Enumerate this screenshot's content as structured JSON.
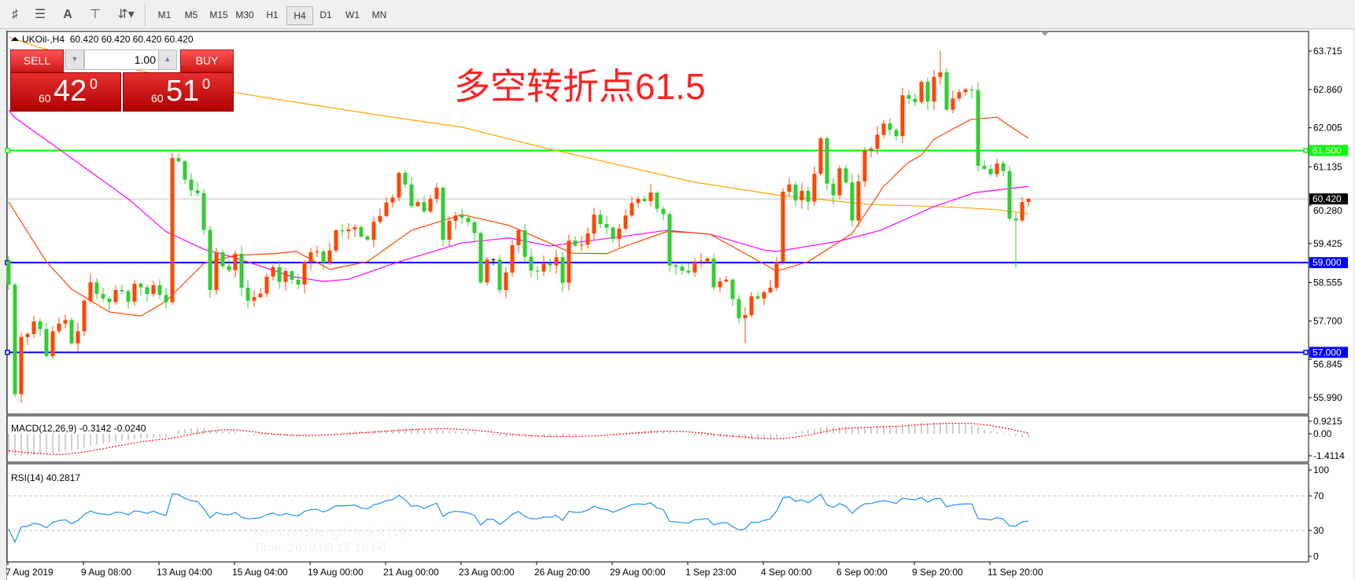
{
  "toolbar": {
    "icons": [
      "expert-tool-icon",
      "fibonacci-tool-icon",
      "text-tool-icon",
      "text-label-tool-icon",
      "arrows-tool-icon"
    ],
    "timeframes": [
      "M1",
      "M5",
      "M15",
      "M30",
      "H1",
      "H4",
      "D1",
      "W1",
      "MN"
    ],
    "active_timeframe": "H4"
  },
  "chart_header": {
    "symbol": "UKOil-,H4",
    "ohlc": "60.420 60.420 60.420 60.420"
  },
  "trade_panel": {
    "sell_label": "SELL",
    "buy_label": "BUY",
    "lot": "1.00",
    "sell_price": {
      "prefix": "60",
      "big": "42",
      "sup": "0"
    },
    "buy_price": {
      "prefix": "60",
      "big": "51",
      "sup": "0"
    }
  },
  "annotation": "多空转折点61.5",
  "tooltip": {
    "line1": "Relative Strength Index (14)",
    "line2": "Time: 2019.08.15 16:00"
  },
  "colors": {
    "bull": "#ff4500",
    "bear": "#32cd32",
    "ma_fast": "#ff4500",
    "ma_mid": "#ff00ff",
    "ma_slow": "#ffa500",
    "rsi": "#1e90ff",
    "resistance": "#00ff00",
    "support": "#0000ff",
    "annotation": "#ff2020"
  },
  "chart_data": [
    {
      "type": "candlestick",
      "title": "UKOil-,H4",
      "first_open": 59.04,
      "close": [
        58.51,
        56.07,
        57.34,
        57.41,
        57.69,
        57.52,
        56.92,
        57.47,
        57.64,
        57.72,
        57.2,
        57.47,
        58.15,
        58.56,
        58.3,
        58.2,
        58.12,
        58.39,
        58.36,
        58.13,
        58.53,
        58.45,
        58.3,
        58.5,
        58.28,
        58.12,
        61.33,
        61.26,
        60.85,
        60.61,
        60.55,
        59.73,
        58.39,
        59.23,
        58.92,
        58.83,
        59.2,
        58.44,
        58.15,
        58.23,
        58.31,
        58.69,
        58.9,
        58.57,
        58.81,
        58.62,
        58.51,
        59.02,
        59.23,
        59.25,
        59.0,
        59.27,
        59.72,
        59.7,
        59.74,
        59.79,
        59.58,
        59.51,
        59.91,
        60.04,
        60.34,
        60.45,
        61.0,
        60.74,
        60.26,
        60.35,
        60.14,
        60.42,
        60.67,
        59.51,
        59.93,
        60.05,
        60.0,
        59.9,
        59.66,
        58.56,
        59.07,
        59.07,
        58.39,
        58.78,
        59.39,
        59.72,
        59.13,
        58.82,
        58.8,
        58.98,
        58.94,
        59.12,
        58.55,
        59.49,
        59.38,
        59.4,
        59.65,
        60.07,
        59.86,
        59.78,
        59.53,
        59.76,
        60.05,
        60.33,
        60.42,
        60.37,
        60.56,
        60.2,
        60.08,
        58.94,
        58.91,
        58.82,
        58.78,
        59.01,
        59.03,
        59.09,
        58.45,
        58.58,
        58.62,
        58.19,
        57.76,
        57.83,
        58.25,
        58.2,
        58.34,
        58.44,
        59.01,
        60.58,
        60.74,
        60.39,
        60.6,
        60.36,
        60.98,
        61.77,
        60.76,
        60.5,
        61.1,
        60.79,
        59.94,
        60.81,
        61.5,
        61.54,
        61.85,
        62.1,
        61.96,
        61.82,
        62.73,
        62.65,
        62.58,
        63.03,
        62.59,
        63.14,
        63.24,
        62.41,
        62.66,
        62.8,
        62.86,
        62.85,
        61.16,
        61.09,
        60.97,
        61.21,
        61.04,
        59.98,
        59.94,
        60.35,
        60.42
      ],
      "extremes": [
        {
          "bar": 2,
          "low": 55.87
        },
        {
          "bar": 26,
          "high": 61.45
        },
        {
          "bar": 117,
          "low": 57.2
        },
        {
          "bar": 148,
          "high": 63.73
        },
        {
          "bar": 160,
          "low": 58.89
        }
      ],
      "moving_averages": [
        {
          "color": "#ffa500",
          "points": [
            [
              0,
              64.03
            ],
            [
              5,
              63.79
            ],
            [
              36,
              62.79
            ],
            [
              44,
              62.61
            ],
            [
              61.5,
              62.23
            ],
            [
              72,
              62.02
            ],
            [
              86,
              61.53
            ],
            [
              109,
              60.79
            ],
            [
              123,
              60.49
            ],
            [
              136.5,
              60.3
            ],
            [
              151,
              60.23
            ],
            [
              157,
              60.18
            ],
            [
              162,
              60.09
            ]
          ]
        },
        {
          "color": "#ff00ff",
          "points": [
            [
              0,
              62.4
            ],
            [
              1,
              62.23
            ],
            [
              8,
              61.53
            ],
            [
              19,
              60.42
            ],
            [
              25,
              59.69
            ],
            [
              31,
              59.3
            ],
            [
              36,
              59.11
            ],
            [
              45,
              58.69
            ],
            [
              50,
              58.58
            ],
            [
              54,
              58.63
            ],
            [
              62,
              59.02
            ],
            [
              72,
              59.44
            ],
            [
              79.5,
              59.55
            ],
            [
              86,
              59.37
            ],
            [
              100,
              59.63
            ],
            [
              104.5,
              59.72
            ],
            [
              111.5,
              59.63
            ],
            [
              120,
              59.28
            ],
            [
              122,
              59.25
            ],
            [
              132,
              59.48
            ],
            [
              138.5,
              59.72
            ],
            [
              147,
              60.25
            ],
            [
              153.5,
              60.56
            ],
            [
              162,
              60.7
            ]
          ]
        },
        {
          "color": "#ff4500",
          "points": [
            [
              0,
              60.35
            ],
            [
              6,
              59.02
            ],
            [
              10,
              58.41
            ],
            [
              16,
              57.9
            ],
            [
              21,
              57.81
            ],
            [
              25,
              58.14
            ],
            [
              31,
              58.98
            ],
            [
              36,
              59.16
            ],
            [
              42,
              59.2
            ],
            [
              45.7,
              59.25
            ],
            [
              51,
              58.85
            ],
            [
              57,
              59.02
            ],
            [
              64,
              59.72
            ],
            [
              72,
              60.07
            ],
            [
              79.5,
              59.83
            ],
            [
              87,
              59.37
            ],
            [
              89.5,
              59.21
            ],
            [
              95,
              59.2
            ],
            [
              98,
              59.37
            ],
            [
              104.5,
              59.69
            ],
            [
              108.6,
              59.67
            ],
            [
              111.5,
              59.63
            ],
            [
              122,
              58.81
            ],
            [
              127,
              59.02
            ],
            [
              134,
              59.65
            ],
            [
              139,
              60.7
            ],
            [
              142.7,
              61.21
            ],
            [
              145,
              61.4
            ],
            [
              147,
              61.75
            ],
            [
              152.8,
              62.19
            ],
            [
              157,
              62.24
            ],
            [
              162,
              61.77
            ]
          ]
        }
      ],
      "horizontal_lines": [
        {
          "value": 61.5,
          "label": "61.500",
          "color": "#00ff00"
        },
        {
          "value": 59.0,
          "label": "59.000",
          "color": "#0000ff"
        },
        {
          "value": 57.0,
          "label": "57.000",
          "color": "#0000ff"
        }
      ],
      "bid_line": {
        "value": 60.42,
        "label": "60.420"
      },
      "y_ticks": [
        "63.715",
        "62.860",
        "62.005",
        "61.135",
        "60.280",
        "59.425",
        "58.555",
        "57.700",
        "56.845",
        "55.990"
      ],
      "ylim": [
        55.99,
        63.715
      ],
      "x_ticks": [
        "7 Aug 2019",
        "9 Aug 08:00",
        "13 Aug 04:00",
        "15 Aug 04:00",
        "19 Aug 00:00",
        "21 Aug 00:00",
        "23 Aug 00:00",
        "26 Aug 20:00",
        "29 Aug 00:00",
        "1 Sep 23:00",
        "4 Sep 00:00",
        "6 Sep 00:00",
        "9 Sep 20:00",
        "11 Sep 20:00"
      ],
      "bars_per_x_tick": 12
    },
    {
      "type": "bar",
      "title": "MACD(12,26,9) -0.3142 -0.0240",
      "params": [
        12,
        26,
        9
      ],
      "y_ticks": [
        "0.9215",
        "0.00",
        "-1.4114"
      ]
    },
    {
      "type": "line",
      "title": "RSI(14) 40.2817",
      "period": 14,
      "levels": [
        70,
        30
      ],
      "y_ticks": [
        "100",
        "70",
        "30",
        "0"
      ],
      "ylim": [
        0,
        100
      ]
    }
  ]
}
